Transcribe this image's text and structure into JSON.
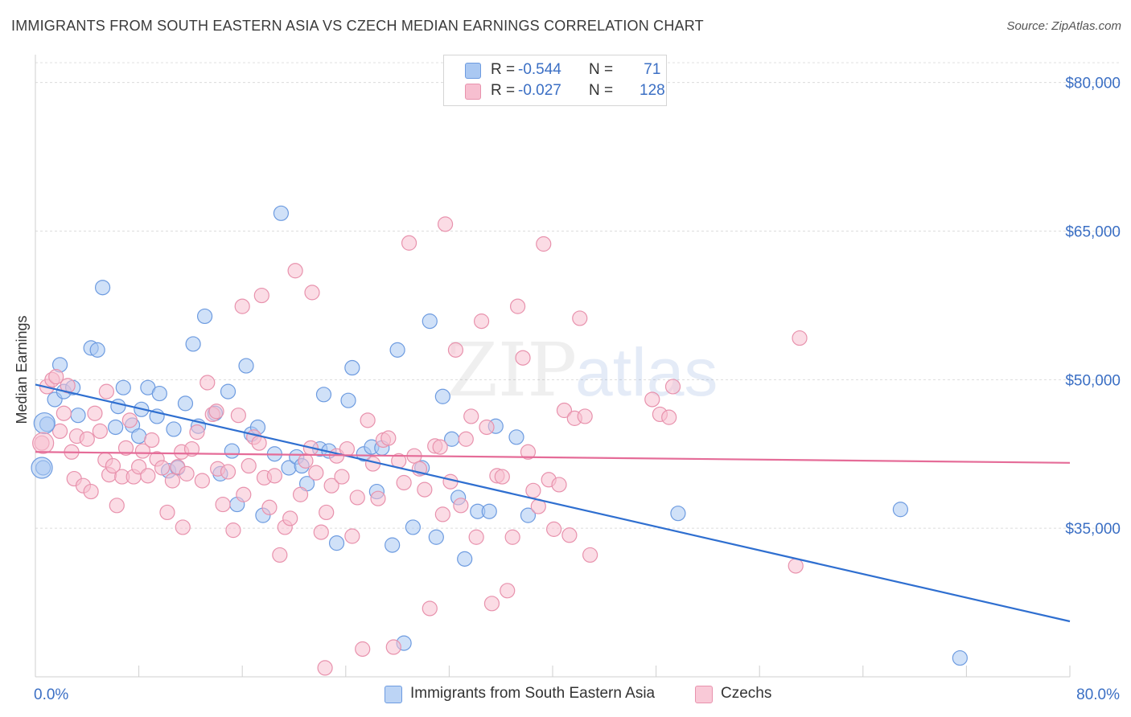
{
  "title": "IMMIGRANTS FROM SOUTH EASTERN ASIA VS CZECH MEDIAN EARNINGS CORRELATION CHART",
  "source": "Source: ZipAtlas.com",
  "watermark": {
    "zip": "ZIP",
    "atlas": "atlas"
  },
  "legend": [
    {
      "r_label": "R =",
      "r_value": "-0.544",
      "n_label": "N =",
      "n_value": " 71",
      "fill": "#aac8f2",
      "stroke": "#6d9be0"
    },
    {
      "r_label": "R =",
      "r_value": "-0.027",
      "n_label": "N =",
      "n_value": "128",
      "fill": "#f7bfd0",
      "stroke": "#e892ad"
    }
  ],
  "bottom_legend": [
    {
      "label": "Immigrants from South Eastern Asia",
      "fill": "#bcd4f5",
      "stroke": "#6d9be0"
    },
    {
      "label": "Czechs",
      "fill": "#f9c9d7",
      "stroke": "#e892ad"
    }
  ],
  "chart_data": {
    "type": "scatter",
    "title": "IMMIGRANTS FROM SOUTH EASTERN ASIA VS CZECH MEDIAN EARNINGS CORRELATION CHART",
    "xlabel": "",
    "ylabel": "Median Earnings",
    "xlim": [
      0,
      80
    ],
    "ylim": [
      20000,
      82000
    ],
    "x_tick_labels": [
      {
        "value": 0,
        "label": "0.0%"
      },
      {
        "value": 80,
        "label": "80.0%"
      }
    ],
    "y_ticks": [
      {
        "value": 35000,
        "label": "$35,000"
      },
      {
        "value": 50000,
        "label": "$50,000"
      },
      {
        "value": 65000,
        "label": "$65,000"
      },
      {
        "value": 80000,
        "label": "$80,000"
      }
    ],
    "series": [
      {
        "name": "Immigrants from South Eastern Asia",
        "color": "#6d9be0",
        "fill": "#aac8f2",
        "trend_color": "#2f6fd0",
        "trend": {
          "x": [
            0,
            80
          ],
          "y": [
            49500,
            25600
          ]
        },
        "points": [
          [
            0.9,
            45500
          ],
          [
            0.6,
            41100
          ],
          [
            1.5,
            48000
          ],
          [
            1.9,
            51500
          ],
          [
            2.2,
            48800
          ],
          [
            2.9,
            49200
          ],
          [
            3.3,
            46400
          ],
          [
            4.3,
            53200
          ],
          [
            4.8,
            53000
          ],
          [
            5.2,
            59300
          ],
          [
            6.2,
            45200
          ],
          [
            6.4,
            47300
          ],
          [
            6.8,
            49200
          ],
          [
            7.5,
            45400
          ],
          [
            8.0,
            44300
          ],
          [
            8.2,
            47000
          ],
          [
            8.7,
            49200
          ],
          [
            9.4,
            46300
          ],
          [
            9.6,
            48600
          ],
          [
            10.3,
            40800
          ],
          [
            10.7,
            45000
          ],
          [
            11.0,
            41100
          ],
          [
            11.6,
            47600
          ],
          [
            12.2,
            53600
          ],
          [
            12.6,
            45300
          ],
          [
            13.1,
            56400
          ],
          [
            13.9,
            46600
          ],
          [
            14.3,
            40500
          ],
          [
            14.9,
            48800
          ],
          [
            15.2,
            42800
          ],
          [
            15.6,
            37400
          ],
          [
            16.3,
            51400
          ],
          [
            16.7,
            44500
          ],
          [
            17.2,
            45200
          ],
          [
            17.6,
            36300
          ],
          [
            18.5,
            42500
          ],
          [
            19.0,
            66800
          ],
          [
            19.6,
            41100
          ],
          [
            20.2,
            42200
          ],
          [
            20.6,
            41300
          ],
          [
            21.0,
            39500
          ],
          [
            22.0,
            43000
          ],
          [
            22.3,
            48500
          ],
          [
            22.7,
            42800
          ],
          [
            23.3,
            33500
          ],
          [
            24.2,
            47900
          ],
          [
            24.5,
            51200
          ],
          [
            25.4,
            42500
          ],
          [
            26.0,
            43200
          ],
          [
            26.4,
            38700
          ],
          [
            26.8,
            43100
          ],
          [
            27.6,
            33300
          ],
          [
            28.0,
            53000
          ],
          [
            28.5,
            23400
          ],
          [
            29.2,
            35100
          ],
          [
            29.9,
            41100
          ],
          [
            30.5,
            55900
          ],
          [
            31.0,
            34100
          ],
          [
            31.5,
            48300
          ],
          [
            32.2,
            44000
          ],
          [
            32.7,
            38100
          ],
          [
            33.2,
            31900
          ],
          [
            34.2,
            36700
          ],
          [
            35.1,
            36700
          ],
          [
            35.6,
            45300
          ],
          [
            37.2,
            44200
          ],
          [
            38.1,
            36300
          ],
          [
            49.7,
            36500
          ],
          [
            66.9,
            36900
          ],
          [
            71.5,
            21900
          ]
        ]
      },
      {
        "name": "Czechs",
        "color": "#e892ad",
        "fill": "#f7bfd0",
        "trend_color": "#e56c98",
        "trend": {
          "x": [
            0,
            80
          ],
          "y": [
            42700,
            41600
          ]
        },
        "points": [
          [
            0.5,
            43600
          ],
          [
            0.9,
            49300
          ],
          [
            1.3,
            50000
          ],
          [
            1.6,
            50300
          ],
          [
            1.9,
            44800
          ],
          [
            2.2,
            46600
          ],
          [
            2.5,
            49400
          ],
          [
            2.8,
            42700
          ],
          [
            3.0,
            40000
          ],
          [
            3.2,
            44300
          ],
          [
            3.7,
            39300
          ],
          [
            4.0,
            44000
          ],
          [
            4.3,
            38700
          ],
          [
            4.6,
            46600
          ],
          [
            5.0,
            44800
          ],
          [
            5.4,
            41900
          ],
          [
            5.7,
            40400
          ],
          [
            6.0,
            41300
          ],
          [
            6.3,
            37300
          ],
          [
            6.7,
            40200
          ],
          [
            7.0,
            43100
          ],
          [
            7.3,
            45900
          ],
          [
            7.6,
            40200
          ],
          [
            8.0,
            41200
          ],
          [
            8.3,
            42800
          ],
          [
            8.7,
            40300
          ],
          [
            9.0,
            43900
          ],
          [
            9.4,
            42000
          ],
          [
            9.8,
            41100
          ],
          [
            10.2,
            36600
          ],
          [
            10.6,
            39800
          ],
          [
            11.0,
            41200
          ],
          [
            11.3,
            42700
          ],
          [
            11.7,
            40500
          ],
          [
            12.1,
            43000
          ],
          [
            12.5,
            44700
          ],
          [
            12.9,
            39800
          ],
          [
            13.3,
            49700
          ],
          [
            13.7,
            46500
          ],
          [
            14.1,
            41000
          ],
          [
            14.5,
            37400
          ],
          [
            14.9,
            40700
          ],
          [
            15.3,
            34800
          ],
          [
            15.7,
            46400
          ],
          [
            16.1,
            38400
          ],
          [
            16.5,
            41300
          ],
          [
            16.9,
            44200
          ],
          [
            17.3,
            43600
          ],
          [
            17.7,
            40100
          ],
          [
            18.1,
            37100
          ],
          [
            18.5,
            40300
          ],
          [
            18.9,
            32300
          ],
          [
            19.3,
            35100
          ],
          [
            19.7,
            36000
          ],
          [
            20.1,
            61000
          ],
          [
            20.5,
            38400
          ],
          [
            20.9,
            41800
          ],
          [
            21.3,
            43100
          ],
          [
            21.7,
            40600
          ],
          [
            22.1,
            34600
          ],
          [
            22.5,
            36600
          ],
          [
            22.9,
            39300
          ],
          [
            23.3,
            42300
          ],
          [
            23.7,
            40200
          ],
          [
            24.1,
            43000
          ],
          [
            24.5,
            34200
          ],
          [
            24.9,
            38100
          ],
          [
            25.3,
            22800
          ],
          [
            25.7,
            45900
          ],
          [
            26.1,
            41500
          ],
          [
            26.5,
            38000
          ],
          [
            26.9,
            43900
          ],
          [
            27.3,
            44100
          ],
          [
            27.7,
            23000
          ],
          [
            28.1,
            41800
          ],
          [
            28.5,
            39600
          ],
          [
            28.9,
            63800
          ],
          [
            29.3,
            42300
          ],
          [
            29.7,
            41000
          ],
          [
            30.1,
            38900
          ],
          [
            30.5,
            26900
          ],
          [
            30.9,
            43300
          ],
          [
            31.3,
            43200
          ],
          [
            31.7,
            65700
          ],
          [
            32.1,
            39700
          ],
          [
            32.5,
            53000
          ],
          [
            32.9,
            37300
          ],
          [
            33.3,
            44000
          ],
          [
            33.7,
            46300
          ],
          [
            34.1,
            34100
          ],
          [
            34.5,
            55900
          ],
          [
            34.9,
            45200
          ],
          [
            35.3,
            27400
          ],
          [
            35.7,
            40300
          ],
          [
            36.1,
            40200
          ],
          [
            36.5,
            28700
          ],
          [
            36.9,
            34100
          ],
          [
            37.3,
            57400
          ],
          [
            37.7,
            52200
          ],
          [
            38.1,
            42700
          ],
          [
            38.5,
            38800
          ],
          [
            38.9,
            37200
          ],
          [
            39.3,
            63700
          ],
          [
            39.7,
            39900
          ],
          [
            40.1,
            34900
          ],
          [
            40.5,
            39400
          ],
          [
            40.9,
            46900
          ],
          [
            41.3,
            34300
          ],
          [
            41.7,
            46100
          ],
          [
            42.1,
            56200
          ],
          [
            42.5,
            46300
          ],
          [
            42.9,
            32300
          ],
          [
            47.7,
            48000
          ],
          [
            48.3,
            46500
          ],
          [
            49.3,
            49300
          ],
          [
            59.1,
            54200
          ],
          [
            58.8,
            31200
          ],
          [
            49.0,
            46200
          ],
          [
            17.5,
            58500
          ],
          [
            31.5,
            36400
          ],
          [
            14.0,
            46800
          ],
          [
            21.4,
            58800
          ],
          [
            22.4,
            20900
          ],
          [
            5.5,
            48800
          ],
          [
            11.4,
            35100
          ],
          [
            16.0,
            57400
          ]
        ]
      }
    ]
  }
}
